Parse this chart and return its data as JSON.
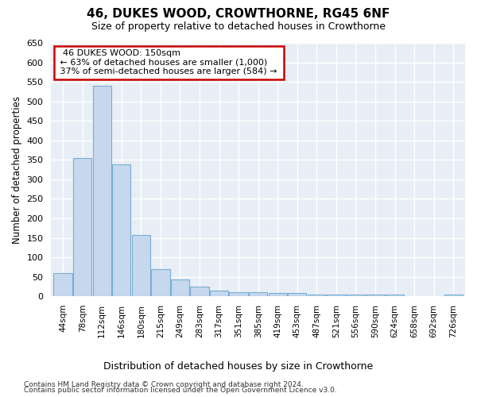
{
  "title": "46, DUKES WOOD, CROWTHORNE, RG45 6NF",
  "subtitle": "Size of property relative to detached houses in Crowthorne",
  "xlabel_dist": "Distribution of detached houses by size in Crowthorne",
  "ylabel": "Number of detached properties",
  "bin_labels": [
    "44sqm",
    "78sqm",
    "112sqm",
    "146sqm",
    "180sqm",
    "215sqm",
    "249sqm",
    "283sqm",
    "317sqm",
    "351sqm",
    "385sqm",
    "419sqm",
    "453sqm",
    "487sqm",
    "521sqm",
    "556sqm",
    "590sqm",
    "624sqm",
    "658sqm",
    "692sqm",
    "726sqm"
  ],
  "bar_values": [
    60,
    355,
    540,
    338,
    157,
    70,
    43,
    25,
    15,
    10,
    10,
    8,
    8,
    5,
    5,
    5,
    5,
    5,
    0,
    0,
    5
  ],
  "bar_color": "#c5d8ed",
  "bar_edge_color": "#7aadd4",
  "annotation_title": "46 DUKES WOOD: 150sqm",
  "annotation_line1": "← 63% of detached houses are smaller (1,000)",
  "annotation_line2": "37% of semi-detached houses are larger (584) →",
  "annotation_box_facecolor": "#ffffff",
  "annotation_box_edgecolor": "#cc0000",
  "ylim": [
    0,
    650
  ],
  "yticks": [
    0,
    50,
    100,
    150,
    200,
    250,
    300,
    350,
    400,
    450,
    500,
    550,
    600,
    650
  ],
  "plot_bg_color": "#e8eef5",
  "fig_bg_color": "#ffffff",
  "grid_color": "#ffffff",
  "footer_line1": "Contains HM Land Registry data © Crown copyright and database right 2024.",
  "footer_line2": "Contains public sector information licensed under the Open Government Licence v3.0."
}
